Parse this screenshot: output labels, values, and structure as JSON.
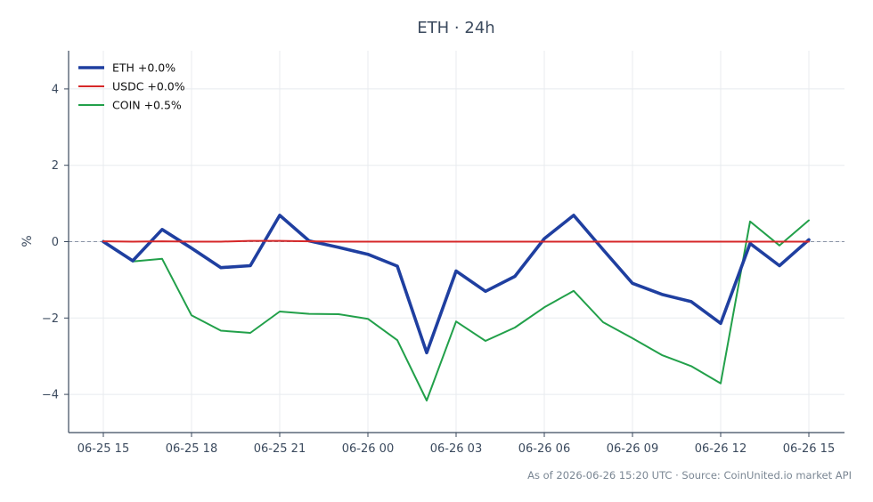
{
  "chart_data": {
    "type": "line",
    "title": "ETH · 24h",
    "ylabel": "%",
    "xlabel": "",
    "ylim": [
      -5,
      5
    ],
    "yticks": [
      -4,
      -2,
      0,
      2,
      4
    ],
    "ytick_labels": [
      "−4",
      "−2",
      "0",
      "2",
      "4"
    ],
    "xticks": [
      "06-25 15",
      "06-25 18",
      "06-25 21",
      "06-26 00",
      "06-26 03",
      "06-26 06",
      "06-26 09",
      "06-26 12",
      "06-26 15"
    ],
    "x": [
      "06-25 15",
      "06-25 16",
      "06-25 17",
      "06-25 18",
      "06-25 19",
      "06-25 20",
      "06-25 21",
      "06-25 22",
      "06-25 23",
      "06-26 00",
      "06-26 01",
      "06-26 02",
      "06-26 03",
      "06-26 04",
      "06-26 05",
      "06-26 06",
      "06-26 07",
      "06-26 08",
      "06-26 09",
      "06-26 10",
      "06-26 11",
      "06-26 12",
      "06-26 13",
      "06-26 14",
      "06-26 15"
    ],
    "series": [
      {
        "name": "ETH +0.0%",
        "color": "#1f3fa0",
        "values": [
          0.0,
          -0.5,
          0.32,
          -0.17,
          -0.68,
          -0.63,
          0.69,
          0.02,
          -0.15,
          -0.33,
          -0.64,
          -2.91,
          -0.77,
          -1.3,
          -0.91,
          0.08,
          0.69,
          -0.21,
          -1.09,
          -1.38,
          -1.57,
          -2.14,
          -0.05,
          -0.63,
          0.05
        ]
      },
      {
        "name": "USDC +0.0%",
        "color": "#d62728",
        "values": [
          0.01,
          0.0,
          0.01,
          0.0,
          0.0,
          0.02,
          0.02,
          0.01,
          0.0,
          0.0,
          0.0,
          0.0,
          0.0,
          0.0,
          0.0,
          0.0,
          0.0,
          0.0,
          0.0,
          0.0,
          0.0,
          0.0,
          0.0,
          0.0,
          0.0
        ]
      },
      {
        "name": "COIN +0.5%",
        "color": "#22a04a",
        "values": [
          0.02,
          -0.52,
          -0.45,
          -1.93,
          -2.33,
          -2.39,
          -1.83,
          -1.89,
          -1.9,
          -2.02,
          -2.58,
          -4.16,
          -2.09,
          -2.6,
          -2.25,
          -1.72,
          -1.29,
          -2.11,
          -2.53,
          -2.97,
          -3.26,
          -3.71,
          0.53,
          -0.1,
          0.56
        ]
      }
    ],
    "zero_line": {
      "value": 0,
      "color": "#8a94a6"
    },
    "grid": true,
    "legend": "top-left",
    "footer": "As of 2026-06-26 15:20 UTC · Source: CoinUnited.io market API"
  }
}
